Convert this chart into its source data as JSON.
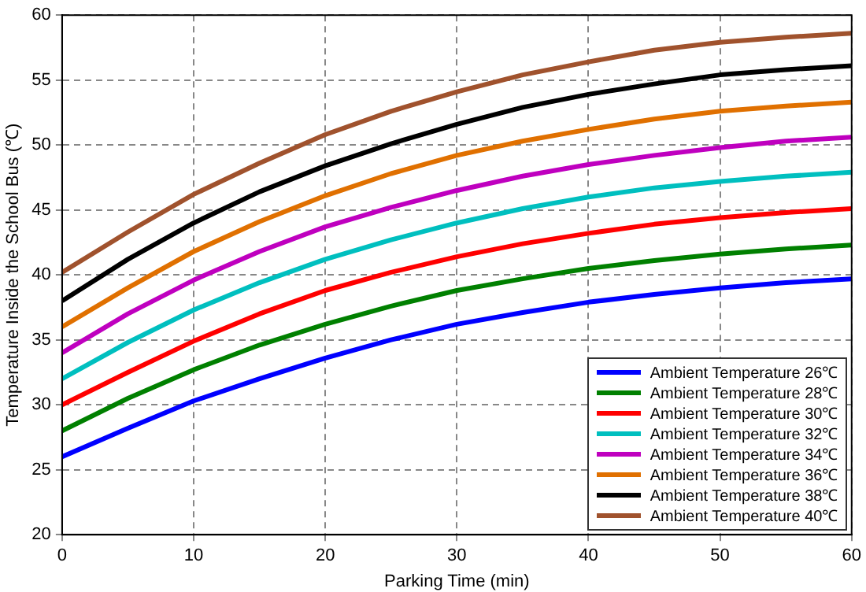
{
  "chart_data": {
    "type": "line",
    "xlabel": "Parking Time (min)",
    "ylabel": "Temperature Inside the School Bus (℃)",
    "x": [
      0,
      5,
      10,
      15,
      20,
      25,
      30,
      35,
      40,
      45,
      50,
      55,
      60
    ],
    "xlim": [
      0,
      60
    ],
    "xticks": [
      0,
      10,
      20,
      30,
      40,
      50,
      60
    ],
    "ylim": [
      20,
      60
    ],
    "yticks": [
      20,
      25,
      30,
      35,
      40,
      45,
      50,
      55,
      60
    ],
    "grid": true,
    "legend": "bottom right",
    "marker": "none",
    "series": [
      {
        "name": "Ambient Temperature 26℃",
        "color": "#0000ff",
        "values": [
          26,
          28.2,
          30.3,
          32,
          33.6,
          35,
          36.2,
          37.1,
          37.9,
          38.5,
          39,
          39.4,
          39.7
        ]
      },
      {
        "name": "Ambient Temperature 28℃",
        "color": "#008000",
        "values": [
          28,
          30.5,
          32.7,
          34.6,
          36.2,
          37.6,
          38.8,
          39.7,
          40.5,
          41.1,
          41.6,
          42,
          42.3
        ]
      },
      {
        "name": "Ambient Temperature 30℃",
        "color": "#ff0000",
        "values": [
          30,
          32.5,
          34.9,
          37,
          38.8,
          40.2,
          41.4,
          42.4,
          43.2,
          43.9,
          44.4,
          44.8,
          45.1
        ]
      },
      {
        "name": "Ambient Temperature 32℃",
        "color": "#00bfbf",
        "values": [
          32,
          34.8,
          37.3,
          39.4,
          41.2,
          42.7,
          44,
          45.1,
          46,
          46.7,
          47.2,
          47.6,
          47.9
        ]
      },
      {
        "name": "Ambient Temperature 34℃",
        "color": "#bf00bf",
        "values": [
          34,
          37,
          39.6,
          41.8,
          43.7,
          45.2,
          46.5,
          47.6,
          48.5,
          49.2,
          49.8,
          50.3,
          50.6
        ]
      },
      {
        "name": "Ambient Temperature 36℃",
        "color": "#e07000",
        "values": [
          36,
          39,
          41.8,
          44.1,
          46.1,
          47.8,
          49.2,
          50.3,
          51.2,
          52,
          52.6,
          53,
          53.3
        ]
      },
      {
        "name": "Ambient Temperature 38℃",
        "color": "#000000",
        "values": [
          38,
          41.2,
          44,
          46.4,
          48.4,
          50.1,
          51.6,
          52.9,
          53.9,
          54.7,
          55.4,
          55.8,
          56.1
        ]
      },
      {
        "name": "Ambient Temperature 40℃",
        "color": "#a0522d",
        "values": [
          40.2,
          43.3,
          46.2,
          48.6,
          50.8,
          52.6,
          54.1,
          55.4,
          56.4,
          57.3,
          57.9,
          58.3,
          58.6
        ]
      }
    ]
  }
}
